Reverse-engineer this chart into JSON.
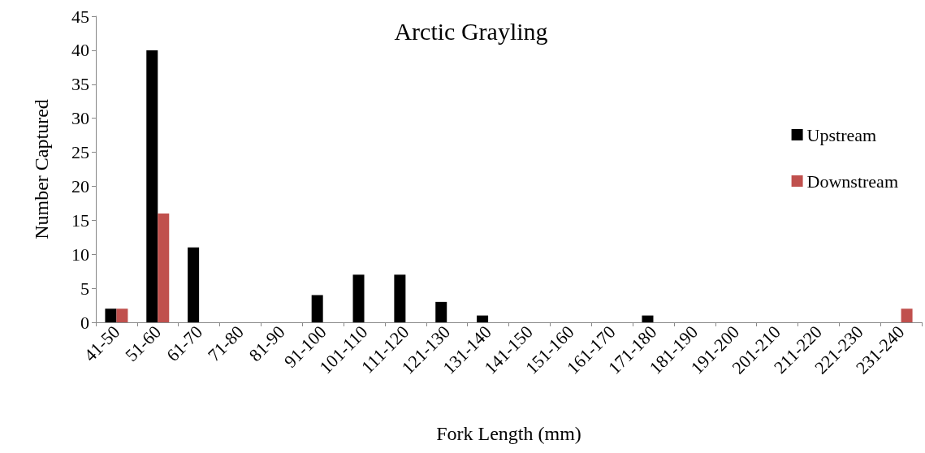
{
  "chart_data": {
    "type": "bar",
    "title": "Arctic Grayling",
    "xlabel": "Fork Length (mm)",
    "ylabel": "Number Captured",
    "categories": [
      "41-50",
      "51-60",
      "61-70",
      "71-80",
      "81-90",
      "91-100",
      "101-110",
      "111-120",
      "121-130",
      "131-140",
      "141-150",
      "151-160",
      "161-170",
      "171-180",
      "181-190",
      "191-200",
      "201-210",
      "211-220",
      "221-230",
      "231-240"
    ],
    "series": [
      {
        "name": "Upstream",
        "color": "#000000",
        "values": [
          2,
          40,
          11,
          0,
          0,
          4,
          7,
          7,
          3,
          1,
          0,
          0,
          0,
          1,
          0,
          0,
          0,
          0,
          0,
          0
        ]
      },
      {
        "name": "Downstream",
        "color": "#c0504d",
        "values": [
          2,
          16,
          0,
          0,
          0,
          0,
          0,
          0,
          0,
          0,
          0,
          0,
          0,
          0,
          0,
          0,
          0,
          0,
          0,
          2
        ]
      }
    ],
    "ylim": [
      0,
      45
    ],
    "yticks": [
      0,
      5,
      10,
      15,
      20,
      25,
      30,
      35,
      40,
      45
    ],
    "grid": false,
    "legend": "right"
  }
}
